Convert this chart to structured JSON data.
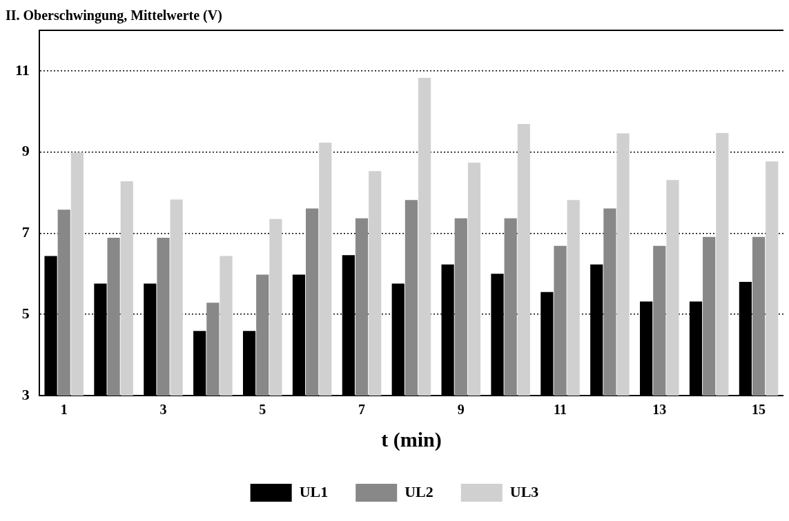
{
  "chart_data": {
    "type": "bar",
    "title": "II. Oberschwingung, Mittelwerte (V)",
    "xlabel": "t (min)",
    "categories": [
      "1",
      null,
      "3",
      null,
      "5",
      null,
      "7",
      null,
      "9",
      null,
      "11",
      null,
      "13",
      null,
      "15"
    ],
    "series": [
      {
        "name": "UL1",
        "color": "#000000",
        "values": [
          6.44,
          5.76,
          5.76,
          4.59,
          4.59,
          5.98,
          6.46,
          5.76,
          6.23,
          6.0,
          5.55,
          6.23,
          5.32,
          5.32,
          5.8
        ]
      },
      {
        "name": "UL2",
        "color": "#888888",
        "values": [
          7.58,
          6.89,
          6.89,
          5.29,
          5.98,
          7.61,
          7.37,
          7.82,
          7.37,
          7.37,
          6.69,
          7.61,
          6.69,
          6.91,
          6.91
        ]
      },
      {
        "name": "UL3",
        "color": "#d0d0d0",
        "values": [
          8.99,
          8.28,
          7.83,
          6.44,
          7.35,
          9.23,
          8.53,
          10.83,
          8.74,
          9.69,
          7.82,
          9.46,
          8.31,
          9.47,
          8.77
        ]
      }
    ],
    "ylim": [
      3,
      12
    ],
    "yticks": [
      3,
      5,
      7,
      9,
      11
    ],
    "grid": "y",
    "legend": "bottom"
  }
}
